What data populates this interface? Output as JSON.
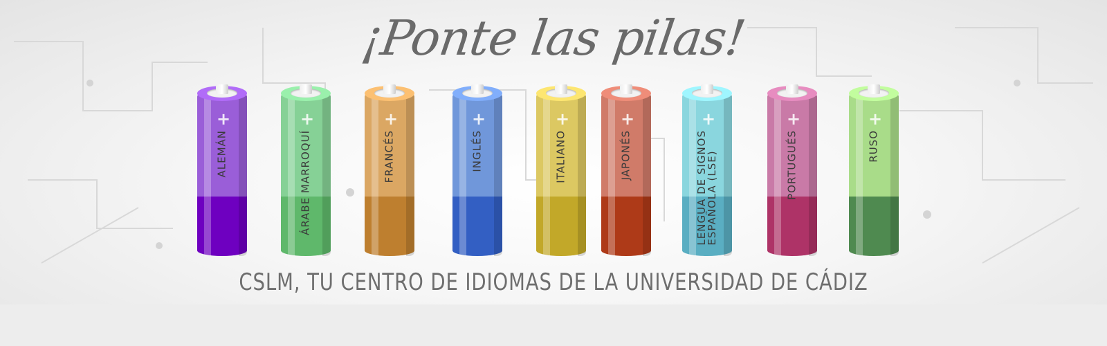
{
  "banner": {
    "headline": "¡Ponte las pilas!",
    "tagline": "CSLM, TU CENTRO DE IDIOMAS DE LA UNIVERSIDAD DE CÁDIZ",
    "batteries": [
      {
        "lines": [
          "ALEMÁN"
        ],
        "top_color": "#9a5ed8",
        "bottom_color": "#6e00c0"
      },
      {
        "lines": [
          "ÁRABE MARROQUÍ"
        ],
        "top_color": "#86d196",
        "bottom_color": "#5fb86b"
      },
      {
        "lines": [
          "FRANCÉS"
        ],
        "top_color": "#dba763",
        "bottom_color": "#be7f2f"
      },
      {
        "lines": [
          "INGLÉS"
        ],
        "top_color": "#7097da",
        "bottom_color": "#335fc3"
      },
      {
        "lines": [
          "ITALIANO"
        ],
        "top_color": "#dcc862",
        "bottom_color": "#c2a829"
      },
      {
        "lines": [
          "JAPONÉS"
        ],
        "top_color": "#d07b69",
        "bottom_color": "#ae3a18"
      },
      {
        "lines": [
          "LENGUA DE SIGNOS",
          "ESPAÑOLA (LSE)"
        ],
        "top_color": "#8ad6de",
        "bottom_color": "#5aaec2"
      },
      {
        "lines": [
          "PORTUGUÉS"
        ],
        "top_color": "#c97aa7",
        "bottom_color": "#ae3367"
      },
      {
        "lines": [
          "RUSO"
        ],
        "top_color": "#a9dc89",
        "bottom_color": "#4f8a50"
      }
    ]
  }
}
